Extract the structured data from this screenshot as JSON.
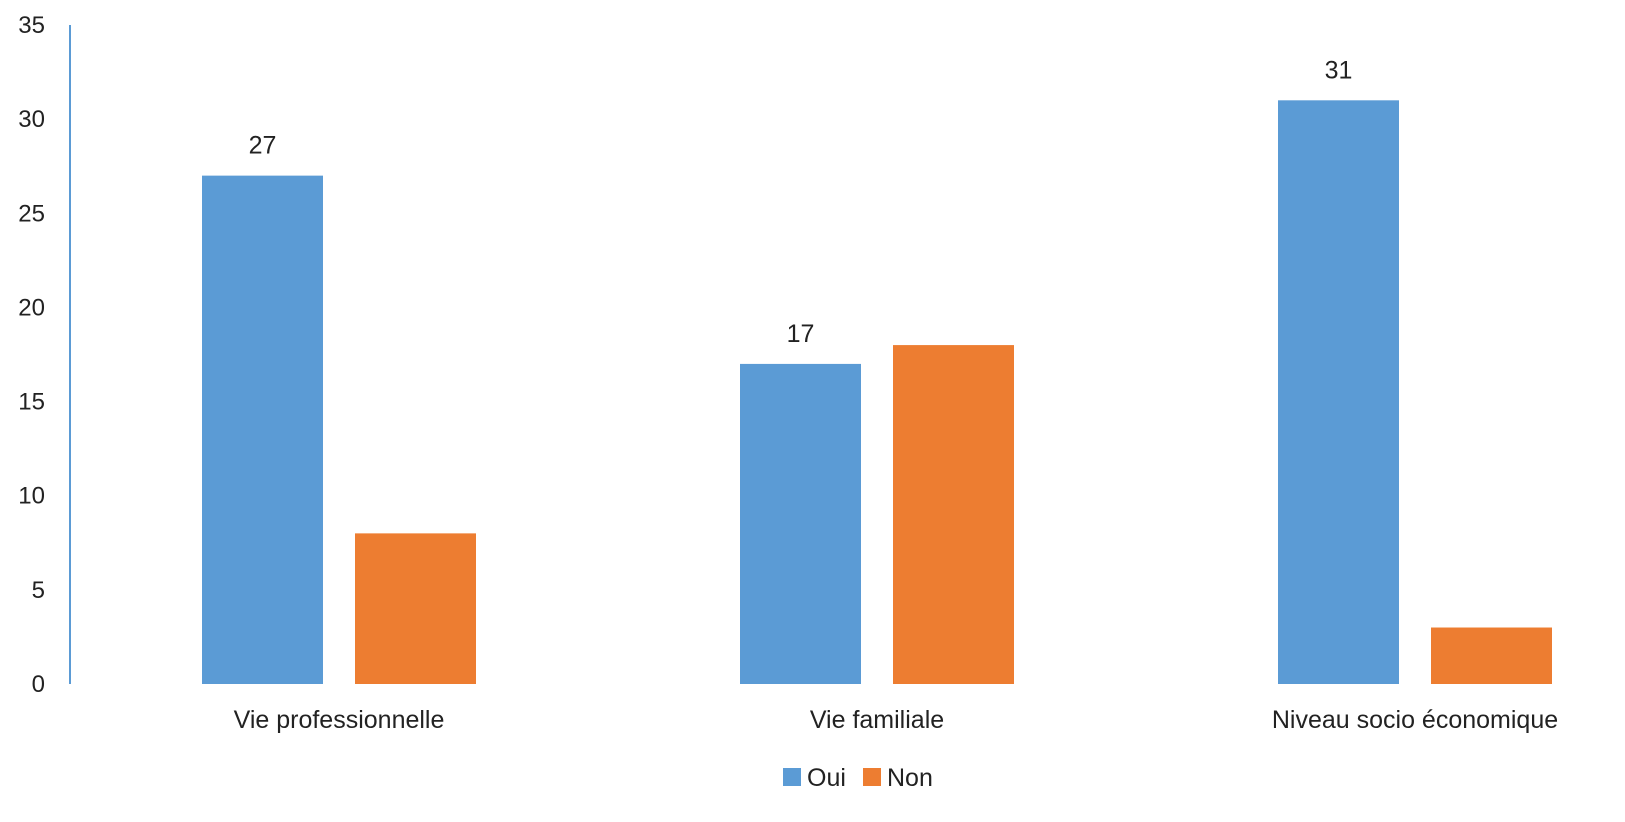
{
  "chart_data": {
    "type": "bar",
    "categories": [
      "Vie professionnelle",
      "Vie familiale",
      "Niveau socio économique"
    ],
    "series": [
      {
        "name": "Oui",
        "color": "#5B9BD5",
        "values": [
          27,
          17,
          31
        ],
        "data_labels": [
          "27",
          "17",
          "31"
        ]
      },
      {
        "name": "Non",
        "color": "#ED7D31",
        "values": [
          8,
          18,
          3
        ],
        "data_labels": [
          "",
          "",
          ""
        ]
      }
    ],
    "title": "",
    "xlabel": "",
    "ylabel": "",
    "ylim": [
      0,
      35
    ],
    "yticks": [
      0,
      5,
      10,
      15,
      20,
      25,
      30,
      35
    ],
    "ytick_labels": [
      "0",
      "5",
      "10",
      "15",
      "20",
      "25",
      "30",
      "35"
    ],
    "grid": false,
    "legend_placement": "bottom-center",
    "axis_color": "#5B9BD5"
  }
}
